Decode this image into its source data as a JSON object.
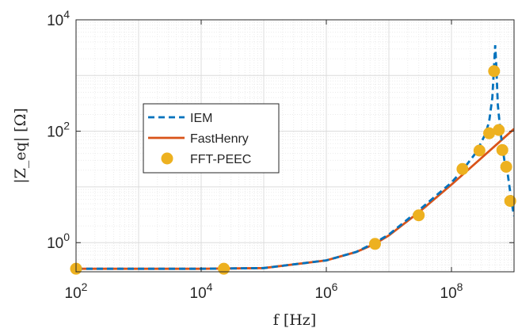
{
  "chart_data": {
    "type": "line",
    "title": "",
    "xlabel": "f [Hz]",
    "ylabel": "|Z_eq| [Ω]",
    "xscale": "log",
    "yscale": "log",
    "xlim": [
      100,
      1000000000
    ],
    "ylim": [
      0.3,
      10000
    ],
    "grid": true,
    "legend_position": "left",
    "x_ticks": [
      {
        "value": 100,
        "base": "10",
        "exp": "2"
      },
      {
        "value": 10000,
        "base": "10",
        "exp": "4"
      },
      {
        "value": 1000000,
        "base": "10",
        "exp": "6"
      },
      {
        "value": 100000000,
        "base": "10",
        "exp": "8"
      }
    ],
    "y_ticks": [
      {
        "value": 1,
        "base": "10",
        "exp": "0"
      },
      {
        "value": 100,
        "base": "10",
        "exp": "2"
      },
      {
        "value": 10000,
        "base": "10",
        "exp": "4"
      }
    ],
    "series": [
      {
        "name": "IEM",
        "style": "dashed",
        "color": "#0072BD",
        "x": [
          100,
          1000,
          10000,
          100000,
          1000000,
          3000000,
          6000000,
          10000000,
          30000000,
          100000000,
          150000000,
          250000000,
          350000000,
          400000000,
          450000000,
          480000000,
          500000000,
          520000000,
          550000000,
          600000000,
          650000000,
          700000000,
          800000000,
          900000000,
          1000000000
        ],
        "y": [
          0.34,
          0.34,
          0.34,
          0.35,
          0.48,
          0.68,
          1.0,
          1.4,
          3.8,
          12,
          20,
          42,
          90,
          150,
          400,
          1500,
          3500,
          1500,
          300,
          110,
          55,
          30,
          16,
          6,
          3
        ]
      },
      {
        "name": "FastHenry",
        "style": "solid",
        "color": "#D95319",
        "x": [
          100,
          1000,
          10000,
          100000,
          1000000,
          3000000,
          6000000,
          10000000,
          30000000,
          100000000,
          300000000,
          600000000,
          1000000000
        ],
        "y": [
          0.34,
          0.34,
          0.34,
          0.35,
          0.48,
          0.68,
          0.95,
          1.35,
          3.5,
          11,
          33,
          66,
          110
        ]
      },
      {
        "name": "FFT-PEEC",
        "style": "markers",
        "color": "#EDB120",
        "x": [
          100,
          23000.0,
          6000000,
          30000000,
          150000000,
          280000000,
          400000000,
          480000000,
          570000000,
          650000000,
          750000000,
          870000000
        ],
        "y": [
          0.34,
          0.34,
          0.95,
          3.1,
          21,
          45,
          92,
          1200,
          105,
          46,
          23,
          5.6
        ]
      }
    ]
  }
}
